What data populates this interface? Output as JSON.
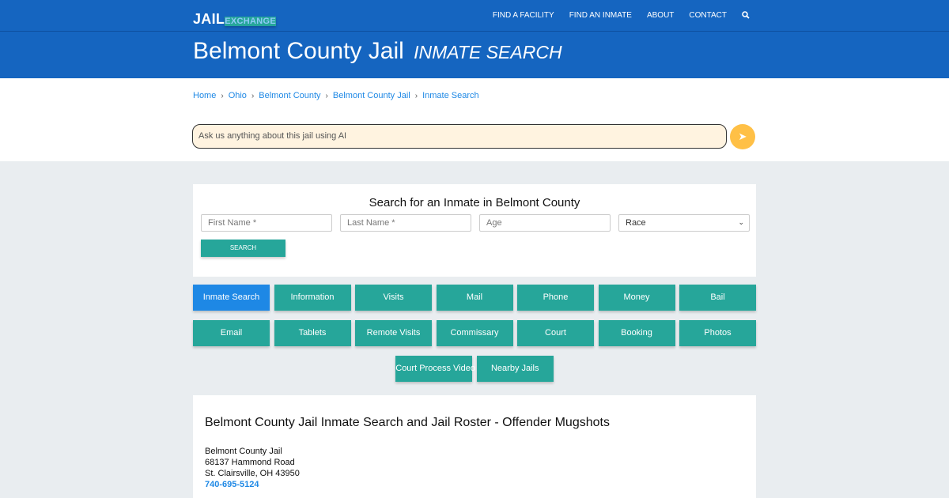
{
  "header": {
    "logo_part1": "JAIL",
    "logo_part2": "EXCHANGE",
    "nav": [
      "FIND A FACILITY",
      "FIND AN INMATE",
      "ABOUT",
      "CONTACT"
    ],
    "search_icon": "search-icon",
    "title": "Belmont County Jail",
    "subtitle": "INMATE SEARCH"
  },
  "breadcrumb": [
    "Home",
    "Ohio",
    "Belmont County",
    "Belmont County Jail",
    "Inmate Search"
  ],
  "ai": {
    "placeholder": "Ask us anything about this jail using AI",
    "icon": "paper-plane-icon"
  },
  "search": {
    "title": "Search for an Inmate in Belmont County",
    "first_name": "First Name *",
    "last_name": "Last Name *",
    "age": "Age",
    "race": "Race",
    "button": "SEARCH"
  },
  "buttons": [
    [
      "Inmate Search",
      "Information",
      "Visits",
      "Mail",
      "Phone",
      "Money",
      "Bail"
    ],
    [
      "Email",
      "Tablets",
      "Remote Visits",
      "Commissary",
      "Court",
      "Booking",
      "Photos"
    ],
    [
      "Court Process Video",
      "Nearby Jails"
    ]
  ],
  "info": {
    "heading": "Belmont County Jail Inmate Search and Jail Roster - Offender Mugshots",
    "name": "Belmont County Jail",
    "address": "68137 Hammond Road",
    "city": "St. Clairsville, OH 43950",
    "phone": "740-695-5124"
  },
  "colors": {
    "header": "#1565c0",
    "button": "#26a69a",
    "active": "#1e88e5",
    "link": "#1e88e5"
  }
}
